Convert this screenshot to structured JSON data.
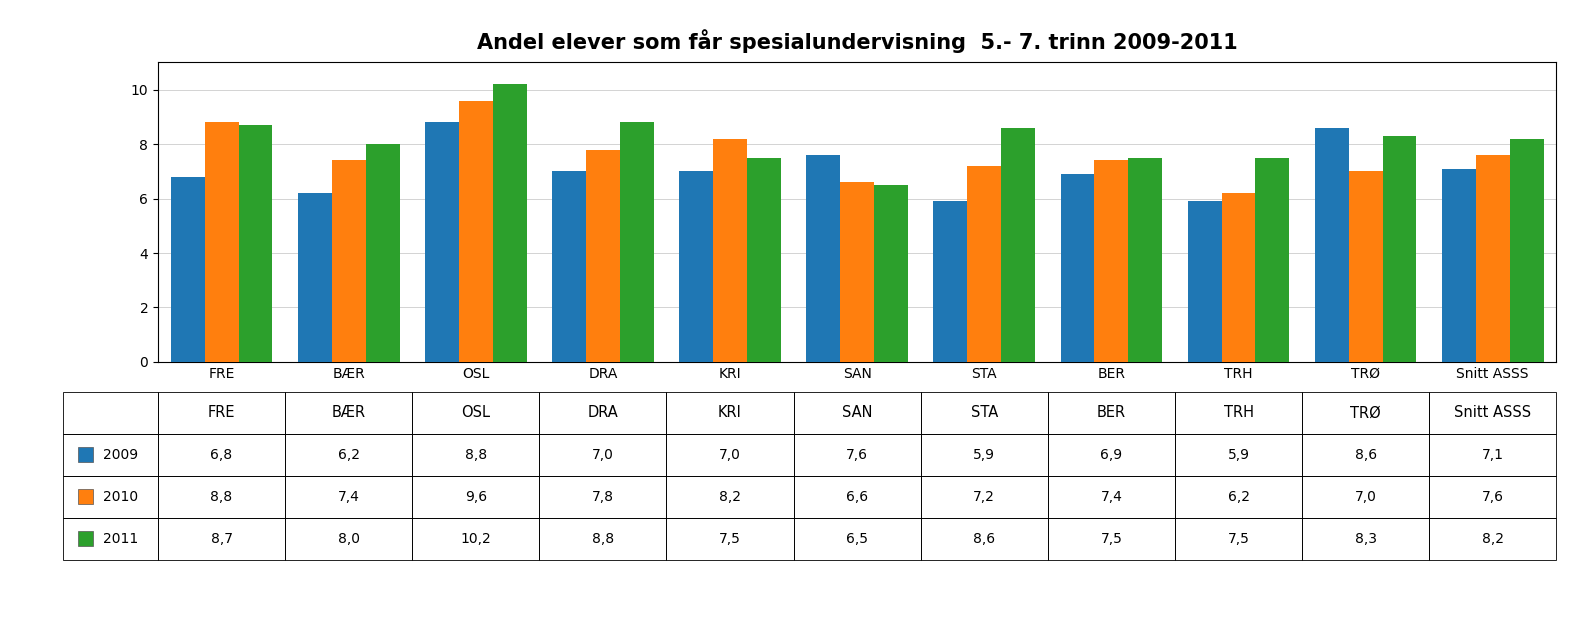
{
  "chart_data": {
    "type": "bar",
    "title": "Andel elever som får spesialundervisning  5.- 7. trinn 2009-2011",
    "categories": [
      "FRE",
      "BÆR",
      "OSL",
      "DRA",
      "KRI",
      "SAN",
      "STA",
      "BER",
      "TRH",
      "TRØ",
      "Snitt ASSS"
    ],
    "series": [
      {
        "name": "2009",
        "values": [
          6.8,
          6.2,
          8.8,
          7.0,
          7.0,
          7.6,
          5.9,
          6.9,
          5.9,
          8.6,
          7.1
        ],
        "value_labels": [
          "6,8",
          "6,2",
          "8,8",
          "7,0",
          "7,0",
          "7,6",
          "5,9",
          "6,9",
          "5,9",
          "8,6",
          "7,1"
        ]
      },
      {
        "name": "2010",
        "values": [
          8.8,
          7.4,
          9.6,
          7.8,
          8.2,
          6.6,
          7.2,
          7.4,
          6.2,
          7.0,
          7.6
        ],
        "value_labels": [
          "8,8",
          "7,4",
          "9,6",
          "7,8",
          "8,2",
          "6,6",
          "7,2",
          "7,4",
          "6,2",
          "7,0",
          "7,6"
        ]
      },
      {
        "name": "2011",
        "values": [
          8.7,
          8.0,
          10.2,
          8.8,
          7.5,
          6.5,
          8.6,
          7.5,
          7.5,
          8.3,
          8.2
        ],
        "value_labels": [
          "8,7",
          "8,0",
          "10,2",
          "8,8",
          "7,5",
          "6,5",
          "8,6",
          "7,5",
          "7,5",
          "8,3",
          "8,2"
        ]
      }
    ],
    "ylim": [
      0,
      11
    ],
    "yticks": [
      0,
      2,
      4,
      6,
      8,
      10
    ],
    "grid": true
  }
}
